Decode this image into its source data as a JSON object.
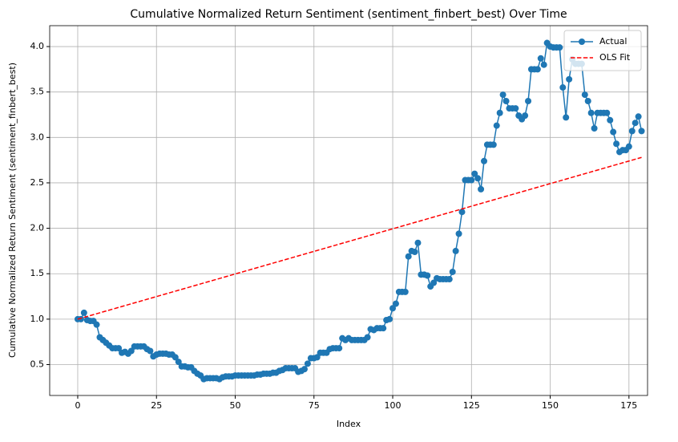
{
  "chart_data": {
    "type": "line",
    "title": "Cumulative Normalized Return Sentiment (sentiment_finbert_best) Over Time",
    "x_label": "Index",
    "y_label": "Cumulative Normalized Return Sentiment (sentiment_finbert_best)",
    "xlim": [
      -8.9,
      180.9
    ],
    "ylim": [
      0.16,
      4.23
    ],
    "xticks": [
      0,
      25,
      50,
      75,
      100,
      125,
      150,
      175
    ],
    "yticks": [
      0.5,
      {
        "value": 1,
        "label": "1.0"
      },
      1.5,
      {
        "value": 2,
        "label": "2.0"
      },
      2.5,
      {
        "value": 3,
        "label": "3.0"
      },
      3.5,
      {
        "value": 4,
        "label": "4.0"
      }
    ],
    "grid": true,
    "legend": "upper right",
    "series": [
      {
        "name": "Actual",
        "color": "#1f77b4",
        "marker": "o",
        "values": [
          1.0,
          1.0,
          1.07,
          0.99,
          0.98,
          0.98,
          0.94,
          0.8,
          0.77,
          0.74,
          0.71,
          0.68,
          0.68,
          0.68,
          0.63,
          0.64,
          0.62,
          0.65,
          0.7,
          0.7,
          0.7,
          0.7,
          0.67,
          0.65,
          0.59,
          0.61,
          0.62,
          0.62,
          0.62,
          0.61,
          0.61,
          0.58,
          0.53,
          0.48,
          0.48,
          0.47,
          0.47,
          0.43,
          0.4,
          0.38,
          0.34,
          0.35,
          0.35,
          0.35,
          0.35,
          0.34,
          0.36,
          0.37,
          0.37,
          0.37,
          0.38,
          0.38,
          0.38,
          0.38,
          0.38,
          0.38,
          0.38,
          0.39,
          0.39,
          0.4,
          0.4,
          0.4,
          0.41,
          0.41,
          0.43,
          0.44,
          0.46,
          0.46,
          0.46,
          0.46,
          0.42,
          0.43,
          0.45,
          0.51,
          0.57,
          0.57,
          0.58,
          0.63,
          0.63,
          0.63,
          0.67,
          0.68,
          0.68,
          0.68,
          0.79,
          0.77,
          0.79,
          0.77,
          0.77,
          0.77,
          0.77,
          0.77,
          0.8,
          0.89,
          0.88,
          0.9,
          0.9,
          0.9,
          0.99,
          1.0,
          1.12,
          1.17,
          1.3,
          1.3,
          1.3,
          1.69,
          1.75,
          1.74,
          1.84,
          1.49,
          1.49,
          1.48,
          1.36,
          1.4,
          1.45,
          1.44,
          1.44,
          1.44,
          1.44,
          1.52,
          1.75,
          1.94,
          2.18,
          2.53,
          2.53,
          2.53,
          2.6,
          2.55,
          2.43,
          2.74,
          2.92,
          2.92,
          2.92,
          3.13,
          3.27,
          3.47,
          3.4,
          3.32,
          3.32,
          3.32,
          3.24,
          3.2,
          3.24,
          3.4,
          3.75,
          3.75,
          3.75,
          3.87,
          3.8,
          4.04,
          4.0,
          3.99,
          3.99,
          3.99,
          3.55,
          3.22,
          3.64,
          3.86,
          3.81,
          3.81,
          3.81,
          3.47,
          3.4,
          3.27,
          3.1,
          3.27,
          3.27,
          3.27,
          3.27,
          3.19,
          3.06,
          2.93,
          2.84,
          2.86,
          2.86,
          2.9,
          3.07,
          3.16,
          3.23,
          3.07
        ]
      },
      {
        "name": "OLS Fit",
        "color": "#ff0000",
        "dashed": true,
        "x": [
          0,
          179
        ],
        "values": [
          1.0,
          2.78
        ]
      }
    ]
  }
}
